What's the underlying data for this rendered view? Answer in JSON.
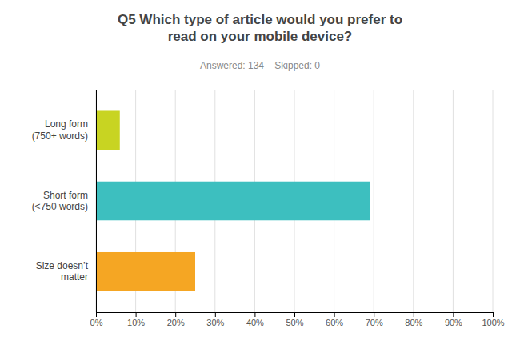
{
  "chart_data": {
    "type": "bar",
    "orientation": "horizontal",
    "title": "Q5 Which type of article would you prefer to\nread on your mobile device?",
    "subtitle": "Answered: 134    Skipped: 0",
    "categories": [
      "Long form\n(750+ words)",
      "Short form\n(<750 words)",
      "Size doesn’t\nmatter"
    ],
    "values": [
      6.0,
      69.0,
      25.0
    ],
    "colors": [
      "#c8d422",
      "#3dbfbf",
      "#f5a623"
    ],
    "xlim": [
      0,
      100
    ],
    "xticks": [
      {
        "value": 0,
        "label": "0%"
      },
      {
        "value": 10,
        "label": "10%"
      },
      {
        "value": 20,
        "label": "20%"
      },
      {
        "value": 30,
        "label": "30%"
      },
      {
        "value": 40,
        "label": "40%"
      },
      {
        "value": 50,
        "label": "50%"
      },
      {
        "value": 60,
        "label": "60%"
      },
      {
        "value": 70,
        "label": "70%"
      },
      {
        "value": 80,
        "label": "80%"
      },
      {
        "value": 90,
        "label": "90%"
      },
      {
        "value": 100,
        "label": "100%"
      }
    ],
    "grid": true
  }
}
